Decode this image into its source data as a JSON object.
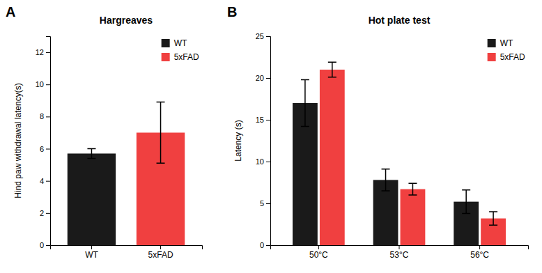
{
  "chart_data": [
    {
      "type": "bar",
      "title": "Hargreaves",
      "annotation": "A",
      "ylabel": "Hind paw withdrawal latency(s)",
      "categories": [
        "WT",
        "5xFAD"
      ],
      "values": [
        5.7,
        7.0
      ],
      "errors": [
        0.3,
        1.9
      ],
      "colors": [
        "#1a1a1a",
        "#f04040"
      ],
      "ylim": [
        0,
        13
      ],
      "yticks": [
        0,
        2,
        4,
        6,
        8,
        10,
        12
      ],
      "grid": false,
      "legend": "upper right"
    },
    {
      "type": "bar",
      "title": "Hot plate test",
      "annotation": "B",
      "ylabel": "Latency (s)",
      "categories": [
        "50°C",
        "53°C",
        "56°C"
      ],
      "series": [
        {
          "name": "WT",
          "color": "#1a1a1a",
          "values": [
            17.0,
            7.8,
            5.2
          ],
          "errors": [
            2.8,
            1.3,
            1.4
          ]
        },
        {
          "name": "5xFAD",
          "color": "#f04040",
          "values": [
            21.0,
            6.7,
            3.2
          ],
          "errors": [
            0.9,
            0.7,
            0.8
          ]
        }
      ],
      "ylim": [
        0,
        25
      ],
      "yticks": [
        0,
        5,
        10,
        15,
        20,
        25
      ],
      "grid": false,
      "legend": "upper right"
    }
  ]
}
